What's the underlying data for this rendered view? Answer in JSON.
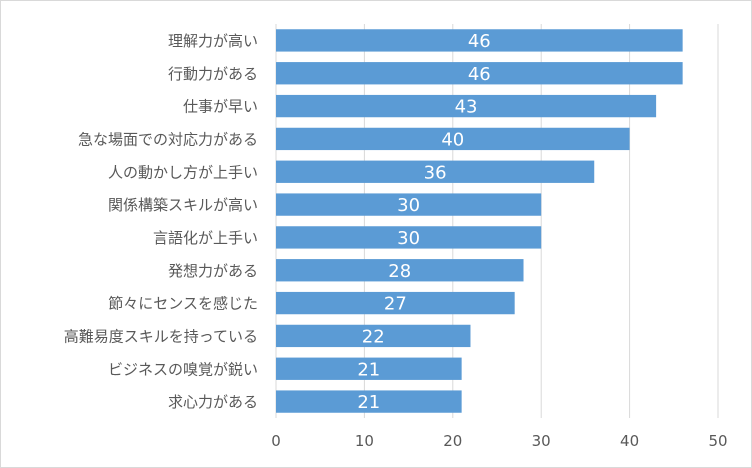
{
  "chart_data": {
    "type": "bar",
    "orientation": "horizontal",
    "categories": [
      "理解力が高い",
      "行動力がある",
      "仕事が早い",
      "急な場面での対応力がある",
      "人の動かし方が上手い",
      "関係構築スキルが高い",
      "言語化が上手い",
      "発想力がある",
      "節々にセンスを感じた",
      "高難易度スキルを持っている",
      "ビジネスの嗅覚が鋭い",
      "求心力がある"
    ],
    "values": [
      46,
      46,
      43,
      40,
      36,
      30,
      30,
      28,
      27,
      22,
      21,
      21
    ],
    "xlim": [
      0,
      50
    ],
    "xticks": [
      0,
      10,
      20,
      30,
      40,
      50
    ],
    "grid": true,
    "data_labels": true,
    "colors": {
      "bar": "#5b9bd5",
      "grid": "#d9d9d9",
      "text": "#595959",
      "label": "#ffffff"
    }
  }
}
